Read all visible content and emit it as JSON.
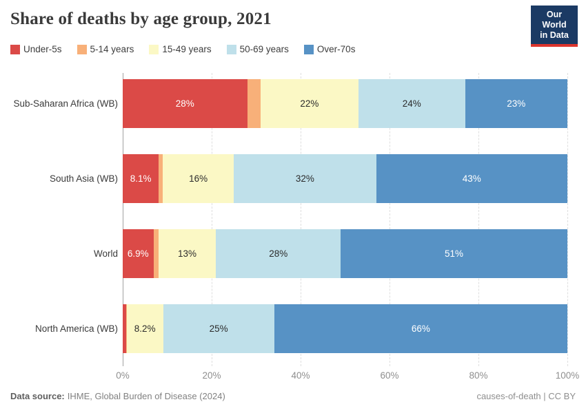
{
  "header": {
    "title": "Share of deaths by age group, 2021"
  },
  "logo": {
    "line1": "Our World",
    "line2": "in Data",
    "bg_color": "#1b3a64",
    "accent_color": "#dd352d"
  },
  "chart_data": {
    "type": "bar",
    "orientation": "horizontal",
    "stacked": true,
    "unit": "%",
    "xlim": [
      0,
      100
    ],
    "x_ticks": [
      {
        "value": 0,
        "label": "0%"
      },
      {
        "value": 20,
        "label": "20%"
      },
      {
        "value": 40,
        "label": "40%"
      },
      {
        "value": 60,
        "label": "60%"
      },
      {
        "value": 80,
        "label": "80%"
      },
      {
        "value": 100,
        "label": "100%"
      }
    ],
    "grid": "dashed-vertical",
    "legend_position": "top-left",
    "series": [
      {
        "name": "Under-5s",
        "color": "#db4a47"
      },
      {
        "name": "5-14 years",
        "color": "#f8b079"
      },
      {
        "name": "15-49 years",
        "color": "#fbf8c5"
      },
      {
        "name": "50-69 years",
        "color": "#bfe0ea"
      },
      {
        "name": "Over-70s",
        "color": "#5792c5"
      }
    ],
    "rows": [
      {
        "label": "Sub-Saharan Africa (WB)",
        "values": [
          28,
          3,
          22,
          24,
          23
        ],
        "value_labels": [
          "28%",
          null,
          "22%",
          "24%",
          "23%"
        ]
      },
      {
        "label": "South Asia (WB)",
        "values": [
          8.1,
          0.9,
          16,
          32,
          43
        ],
        "value_labels": [
          "8.1%",
          null,
          "16%",
          "32%",
          "43%"
        ]
      },
      {
        "label": "World",
        "values": [
          6.9,
          1.1,
          13,
          28,
          51
        ],
        "value_labels": [
          "6.9%",
          null,
          "13%",
          "28%",
          "51%"
        ]
      },
      {
        "label": "North America (WB)",
        "values": [
          0.7,
          0.2,
          8.2,
          25,
          66
        ],
        "value_labels": [
          null,
          null,
          "8.2%",
          "25%",
          "66%"
        ]
      }
    ]
  },
  "footer": {
    "source_label": "Data source:",
    "source_text": "IHME, Global Burden of Disease (2024)",
    "credit": "causes-of-death | CC BY"
  }
}
